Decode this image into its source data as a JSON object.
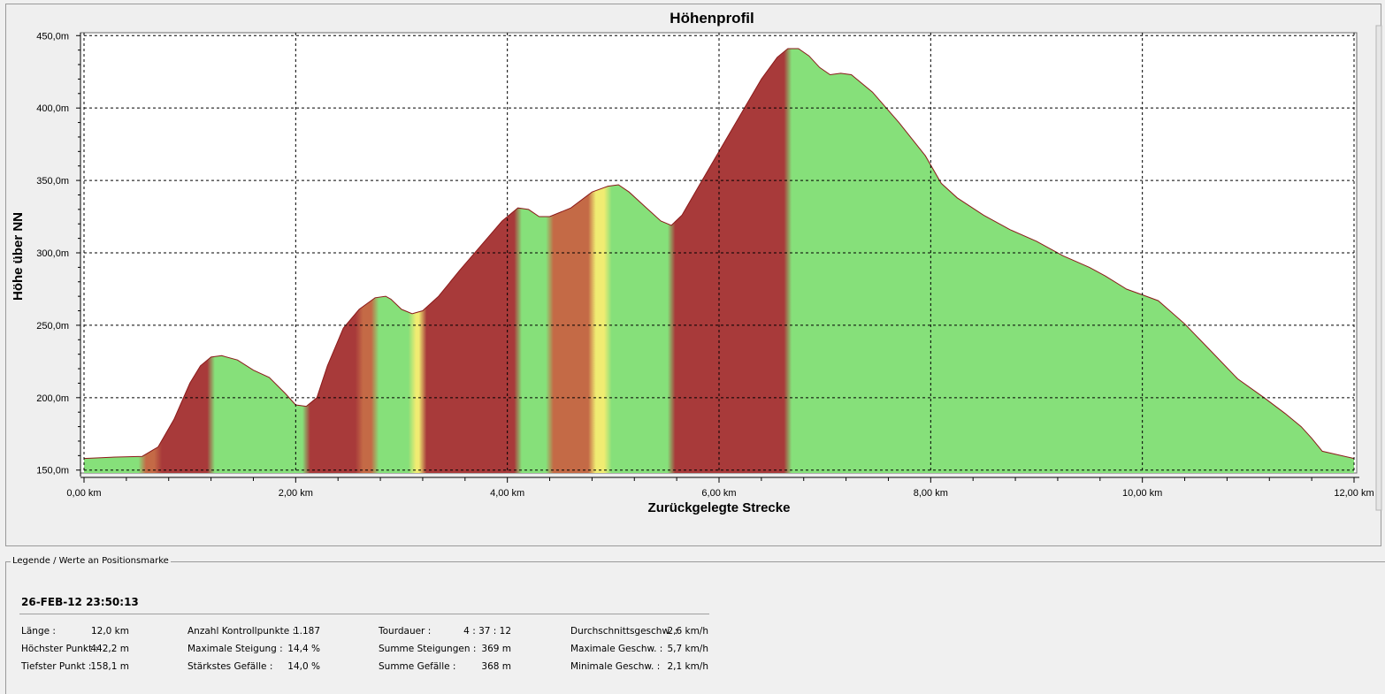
{
  "chart_data": {
    "type": "area",
    "title": "Höhenprofil",
    "xlabel": "Zurückgelegte Strecke",
    "ylabel": "Höhe über NN",
    "xlim": [
      0,
      12
    ],
    "ylim": [
      148,
      452
    ],
    "x_ticks": [
      0,
      2,
      4,
      6,
      8,
      10,
      12
    ],
    "x_tick_labels": [
      "0,00 km",
      "2,00 km",
      "4,00 km",
      "6,00 km",
      "8,00 km",
      "10,00 km",
      "12,00 km"
    ],
    "y_ticks": [
      150,
      200,
      250,
      300,
      350,
      400,
      450
    ],
    "y_tick_labels": [
      "150,0m",
      "200,0m",
      "250,0m",
      "300,0m",
      "350,0m",
      "400,0m",
      "450,0m"
    ],
    "grid": true,
    "x": [
      0,
      0.3,
      0.55,
      0.7,
      0.85,
      1.0,
      1.1,
      1.2,
      1.3,
      1.45,
      1.6,
      1.75,
      1.9,
      2.0,
      2.1,
      2.2,
      2.3,
      2.45,
      2.6,
      2.75,
      2.85,
      2.9,
      3.0,
      3.1,
      3.2,
      3.35,
      3.55,
      3.75,
      3.95,
      4.1,
      4.2,
      4.3,
      4.4,
      4.6,
      4.8,
      4.95,
      5.05,
      5.15,
      5.3,
      5.45,
      5.55,
      5.65,
      5.8,
      6.0,
      6.2,
      6.4,
      6.55,
      6.65,
      6.75,
      6.85,
      6.95,
      7.05,
      7.15,
      7.25,
      7.45,
      7.7,
      7.95,
      8.1,
      8.25,
      8.5,
      8.75,
      9.0,
      9.25,
      9.5,
      9.65,
      9.85,
      10.0,
      10.15,
      10.4,
      10.65,
      10.9,
      11.15,
      11.35,
      11.5,
      11.6,
      11.7,
      12.0
    ],
    "elevation_m": [
      158,
      159,
      159.5,
      166,
      185,
      210,
      222,
      228,
      229,
      226,
      219,
      214,
      203,
      195,
      194,
      200,
      222,
      248,
      261,
      269,
      270,
      268,
      261,
      258,
      260,
      270,
      288,
      305,
      322,
      331,
      330,
      325,
      325,
      331,
      342,
      346,
      347,
      342,
      332,
      322,
      319,
      326,
      345,
      370,
      395,
      420,
      435,
      441,
      441,
      436,
      428,
      423,
      424,
      423,
      411,
      390,
      367,
      348,
      338,
      326,
      316,
      308,
      298,
      290,
      284,
      275,
      271,
      267,
      251,
      232,
      213,
      200,
      189,
      180,
      172,
      163,
      158
    ],
    "colors": {
      "flat": "#86e07a",
      "moderate": "#f0ec72",
      "steep": "#a83a3a",
      "outline": "#8b1a1a",
      "grid": "#000000",
      "plot_bg": "#ffffff"
    }
  },
  "legend": {
    "title": "Legende / Werte an Positionsmarke",
    "datetime": "26-FEB-12 23:50:13",
    "stats": [
      [
        {
          "label": "Länge :",
          "value": "12,0 km"
        },
        {
          "label": "Höchster Punkt :",
          "value": "442,2 m"
        },
        {
          "label": "Tiefster Punkt :",
          "value": "158,1 m"
        }
      ],
      [
        {
          "label": "Anzahl Kontrollpunkte :",
          "value": "1.187"
        },
        {
          "label": "Maximale Steigung :",
          "value": "14,4 %"
        },
        {
          "label": "Stärkstes Gefälle :",
          "value": "14,0 %"
        }
      ],
      [
        {
          "label": "Tourdauer :",
          "value": "4 : 37 : 12"
        },
        {
          "label": "Summe Steigungen :",
          "value": "369 m"
        },
        {
          "label": "Summe Gefälle :",
          "value": "368 m"
        }
      ],
      [
        {
          "label": "Durchschnittsgeschw. :",
          "value": "2,6 km/h"
        },
        {
          "label": "Maximale Geschw. :",
          "value": "5,7 km/h"
        },
        {
          "label": "Minimale Geschw. :",
          "value": "2,1 km/h"
        }
      ]
    ]
  }
}
